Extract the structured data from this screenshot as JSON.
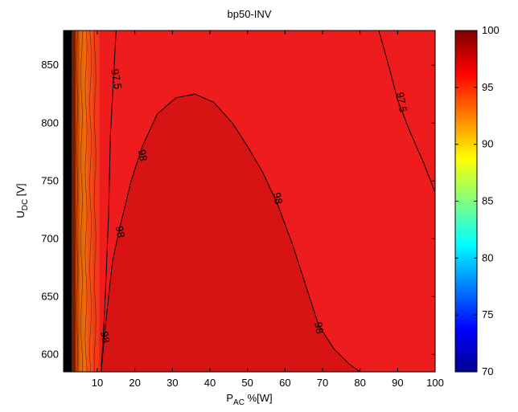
{
  "chart_data": {
    "type": "contour",
    "title": "bp50-INV",
    "xlabel": {
      "main": "P",
      "sub": "AC",
      "rest": " %[W]"
    },
    "ylabel": {
      "main": "U",
      "sub": "DC",
      "rest": " [V]"
    },
    "xlim": [
      1,
      100
    ],
    "ylim": [
      585,
      880
    ],
    "x_ticks": [
      10,
      20,
      30,
      40,
      50,
      60,
      70,
      80,
      90,
      100
    ],
    "y_ticks": [
      600,
      650,
      700,
      750,
      800,
      850
    ],
    "colorbar": {
      "ticks": [
        70,
        75,
        80,
        85,
        90,
        95,
        100
      ],
      "range": [
        70,
        100
      ],
      "colormap": "jet"
    },
    "contour_labels": [
      {
        "text": "97.5",
        "x": 15,
        "y": 838
      },
      {
        "text": "97.5",
        "x": 91,
        "y": 818
      },
      {
        "text": "98",
        "x": 22,
        "y": 772
      },
      {
        "text": "98",
        "x": 16,
        "y": 706
      },
      {
        "text": "98",
        "x": 12,
        "y": 615
      },
      {
        "text": "98",
        "x": 58,
        "y": 735
      },
      {
        "text": "98",
        "x": 69,
        "y": 623
      }
    ],
    "contours": [
      {
        "level": 98,
        "points": [
          [
            11,
            585
          ],
          [
            12,
            620
          ],
          [
            14,
            680
          ],
          [
            16,
            710
          ],
          [
            19,
            750
          ],
          [
            22,
            780
          ],
          [
            26,
            808
          ],
          [
            31,
            822
          ],
          [
            36,
            825
          ],
          [
            41,
            818
          ],
          [
            46,
            800
          ],
          [
            50,
            780
          ],
          [
            54,
            758
          ],
          [
            58,
            730
          ],
          [
            62,
            695
          ],
          [
            66,
            655
          ],
          [
            69,
            625
          ],
          [
            73,
            605
          ],
          [
            77,
            592
          ],
          [
            80,
            585
          ]
        ]
      },
      {
        "level": 97.5,
        "points": [
          [
            11,
            585
          ],
          [
            12,
            640
          ],
          [
            13,
            720
          ],
          [
            13.5,
            790
          ],
          [
            14.5,
            850
          ],
          [
            15,
            880
          ]
        ]
      },
      {
        "level": 97.5,
        "points": [
          [
            85,
            880
          ],
          [
            88,
            845
          ],
          [
            90,
            820
          ],
          [
            93,
            795
          ],
          [
            97,
            765
          ],
          [
            100,
            740
          ]
        ]
      }
    ]
  }
}
